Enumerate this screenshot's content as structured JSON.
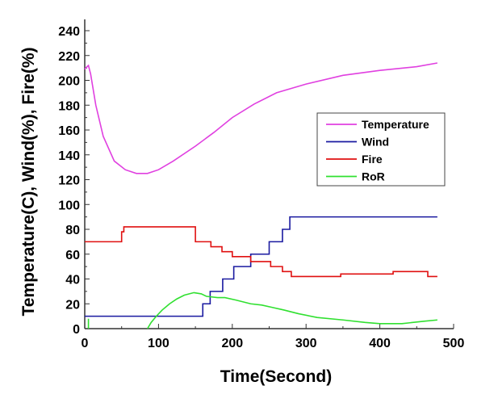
{
  "chart_data": {
    "type": "line",
    "title": "",
    "xlabel": "Time(Second)",
    "ylabel": "Temperature(C), Wind(%), Fire(%)",
    "xlim": [
      0,
      500
    ],
    "ylim": [
      0,
      240
    ],
    "xticks": [
      0,
      100,
      200,
      300,
      400,
      500
    ],
    "yticks": [
      0,
      20,
      40,
      60,
      80,
      100,
      120,
      140,
      160,
      180,
      200,
      220,
      240
    ],
    "grid": false,
    "legend_position": "center-right",
    "series": [
      {
        "name": "Temperature",
        "color": "#e040e0",
        "step": false,
        "x": [
          0,
          3,
          5,
          8,
          15,
          25,
          40,
          55,
          70,
          85,
          100,
          120,
          150,
          175,
          200,
          230,
          260,
          300,
          350,
          400,
          450,
          478
        ],
        "y": [
          209,
          211,
          212,
          205,
          180,
          155,
          135,
          128,
          125,
          125,
          128,
          135,
          147,
          158,
          170,
          181,
          190,
          197,
          204,
          208,
          211,
          214
        ]
      },
      {
        "name": "Wind",
        "color": "#1a1aa0",
        "step": true,
        "x": [
          0,
          160,
          170,
          187,
          202,
          225,
          250,
          268,
          278,
          478
        ],
        "y": [
          10,
          20,
          30,
          40,
          50,
          60,
          70,
          80,
          90,
          90
        ]
      },
      {
        "name": "Fire",
        "color": "#e01010",
        "step": true,
        "x": [
          0,
          50,
          53,
          150,
          171,
          186,
          200,
          225,
          252,
          268,
          280,
          347,
          418,
          465,
          478
        ],
        "y": [
          70,
          78,
          82,
          70,
          66,
          62,
          58,
          54,
          50,
          46,
          42,
          44,
          46,
          42,
          42
        ]
      },
      {
        "name": "RoR",
        "color": "#30e030",
        "step": false,
        "x": [
          85,
          90,
          97,
          105,
          115,
          125,
          135,
          148,
          158,
          165,
          180,
          190,
          205,
          225,
          240,
          255,
          270,
          290,
          315,
          350,
          380,
          400,
          430,
          460,
          478
        ],
        "y": [
          0,
          5,
          10,
          15,
          20,
          24,
          27,
          29,
          28,
          26,
          25,
          25,
          23,
          20,
          19,
          17,
          15,
          12,
          9,
          7,
          5,
          4,
          4,
          6,
          7
        ],
        "extra_segment": {
          "x": [
            5,
            5
          ],
          "y": [
            0,
            8
          ]
        }
      }
    ]
  }
}
